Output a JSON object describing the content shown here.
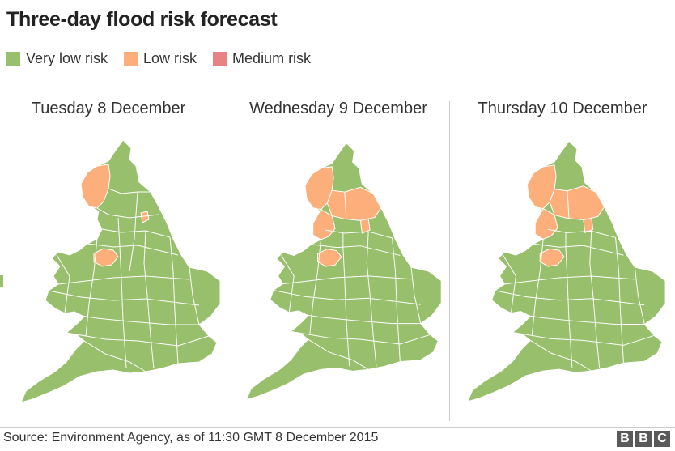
{
  "title": "Three-day flood risk forecast",
  "legend": [
    {
      "label": "Very low risk",
      "color": "#97bf6c"
    },
    {
      "label": "Low risk",
      "color": "#fcaf7a"
    },
    {
      "label": "Medium risk",
      "color": "#e88385"
    }
  ],
  "panels": [
    {
      "day": "Tuesday 8 December",
      "low_risk_regions": [
        "cumbria",
        "lancashire-north",
        "small-east"
      ]
    },
    {
      "day": "Wednesday 9 December",
      "low_risk_regions": [
        "cumbria",
        "northumberland-south",
        "yorkshire-dales",
        "lancashire-north",
        "small-east"
      ]
    },
    {
      "day": "Thursday 10 December",
      "low_risk_regions": [
        "cumbria",
        "northumberland-south",
        "yorkshire-dales",
        "lancashire-north",
        "small-east"
      ]
    }
  ],
  "source": "Source: Environment Agency, as of 11:30 GMT 8 December 2015",
  "brand": {
    "letters": [
      "B",
      "B",
      "C"
    ]
  },
  "colors": {
    "land": "#97bf6c",
    "low": "#fcaf7a",
    "border": "#ffffff"
  }
}
